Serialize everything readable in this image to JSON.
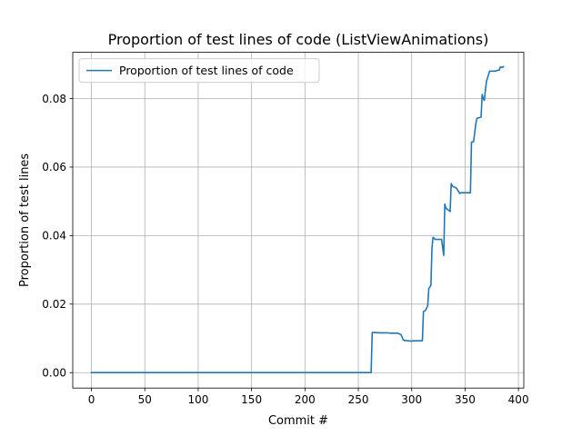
{
  "chart_data": {
    "type": "line",
    "title": "Proportion of test lines of code (ListViewAnimations)",
    "xlabel": "Commit #",
    "ylabel": "Proportion of test lines",
    "xlim": [
      -17.5,
      405
    ],
    "ylim": [
      -0.0045,
      0.0935
    ],
    "xticks": [
      0,
      50,
      100,
      150,
      200,
      250,
      300,
      350,
      400
    ],
    "xtick_labels": [
      "0",
      "50",
      "100",
      "150",
      "200",
      "250",
      "300",
      "350",
      "400"
    ],
    "yticks": [
      0.0,
      0.02,
      0.04,
      0.06,
      0.08
    ],
    "ytick_labels": [
      "0.00",
      "0.02",
      "0.04",
      "0.06",
      "0.08"
    ],
    "grid": true,
    "legend": {
      "location": "upper-left"
    },
    "color": "#1f77b4",
    "series": [
      {
        "name": "Proportion of test lines of code",
        "x": [
          0,
          100,
          200,
          262,
          263,
          265,
          270,
          278,
          280,
          287,
          290,
          292,
          293,
          300,
          302,
          305,
          310,
          311,
          313,
          315,
          316,
          318,
          319,
          320,
          322,
          325,
          327,
          328,
          330,
          331,
          332,
          335,
          336,
          337,
          338,
          341,
          342,
          345,
          346,
          350,
          352,
          355,
          356,
          357,
          358,
          360,
          361,
          365,
          366,
          367,
          368,
          370,
          372,
          373,
          378,
          380,
          382,
          383,
          385,
          386
        ],
        "y": [
          0.0,
          0.0,
          0.0,
          0.0,
          0.0117,
          0.0117,
          0.0116,
          0.0116,
          0.0115,
          0.0115,
          0.0111,
          0.0096,
          0.0094,
          0.0092,
          0.0093,
          0.0093,
          0.0093,
          0.0178,
          0.0182,
          0.0195,
          0.0245,
          0.0255,
          0.0365,
          0.0395,
          0.0389,
          0.0389,
          0.0389,
          0.0389,
          0.0342,
          0.0492,
          0.048,
          0.0473,
          0.047,
          0.0552,
          0.0545,
          0.054,
          0.0538,
          0.0523,
          0.0525,
          0.0525,
          0.0525,
          0.0525,
          0.0673,
          0.0673,
          0.0675,
          0.0725,
          0.0742,
          0.0746,
          0.0812,
          0.08,
          0.0795,
          0.085,
          0.087,
          0.088,
          0.088,
          0.0882,
          0.0883,
          0.0892,
          0.0891,
          0.0893
        ]
      }
    ]
  }
}
